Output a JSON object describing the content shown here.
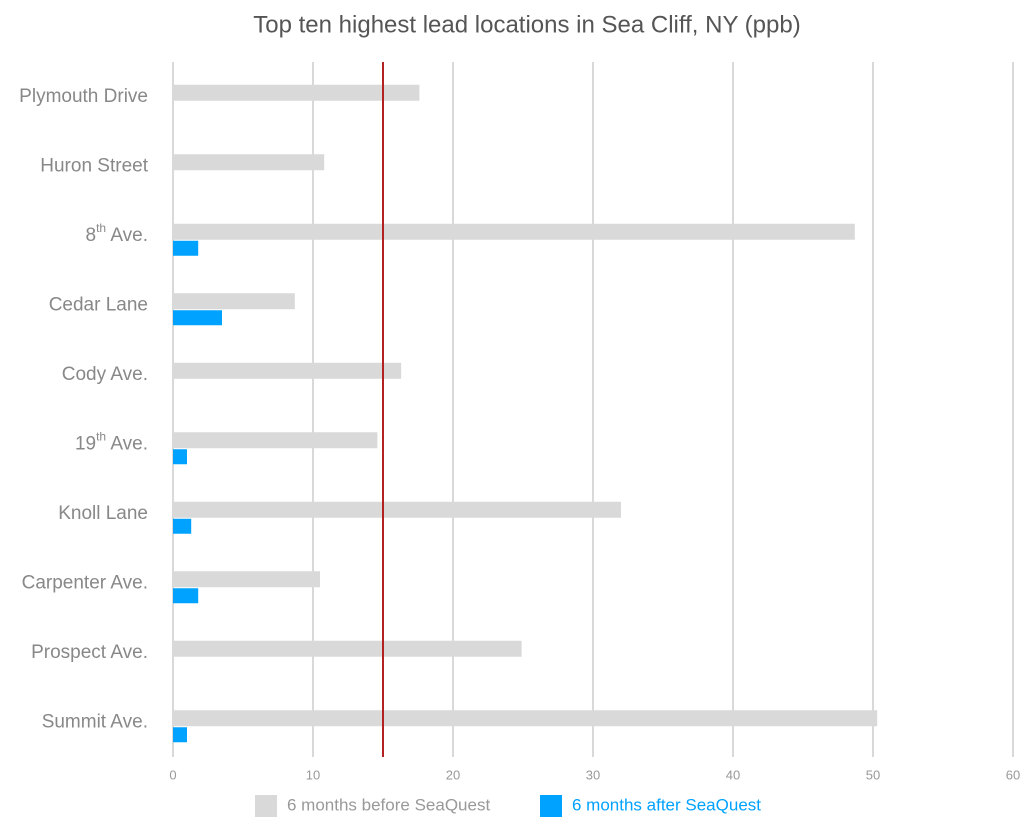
{
  "chart_data": {
    "type": "hbar",
    "title": "Top ten highest lead locations in Sea Cliff, NY (ppb)",
    "categories": [
      "Plymouth Drive",
      "Huron Street",
      "8th Ave.",
      "Cedar Lane",
      "Cody Ave.",
      "19th Ave.",
      "Knoll Lane",
      "Carpenter Ave.",
      "Prospect Ave.",
      "Summit Ave."
    ],
    "series": [
      {
        "name": "6 months before SeaQuest",
        "color": "#d9d9d9",
        "values": [
          17.6,
          10.8,
          48.7,
          8.7,
          16.3,
          14.6,
          32.0,
          10.5,
          24.9,
          50.3
        ]
      },
      {
        "name": "6 months after SeaQuest",
        "color": "#00a2ff",
        "values": [
          0,
          0,
          1.8,
          3.5,
          0,
          1.0,
          1.3,
          1.8,
          0,
          1.0
        ]
      }
    ],
    "xlim": [
      0,
      60
    ],
    "xticks": [
      0,
      10,
      20,
      30,
      40,
      50,
      60
    ],
    "grid": true,
    "reference_line": {
      "value": 15,
      "color": "#b22222"
    },
    "legend": "bottom"
  }
}
